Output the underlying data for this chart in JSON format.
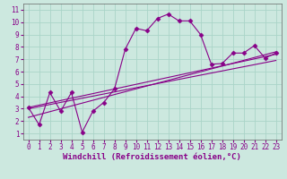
{
  "xlabel": "Windchill (Refroidissement éolien,°C)",
  "bg_color": "#cce8df",
  "plot_bg_color": "#cce8df",
  "line_color": "#880088",
  "grid_color": "#aad4c8",
  "xlim": [
    -0.5,
    23.5
  ],
  "ylim": [
    0.5,
    11.5
  ],
  "xticks": [
    0,
    1,
    2,
    3,
    4,
    5,
    6,
    7,
    8,
    9,
    10,
    11,
    12,
    13,
    14,
    15,
    16,
    17,
    18,
    19,
    20,
    21,
    22,
    23
  ],
  "yticks": [
    1,
    2,
    3,
    4,
    5,
    6,
    7,
    8,
    9,
    10,
    11
  ],
  "line1_x": [
    0,
    1,
    2,
    3,
    4,
    5,
    6,
    7,
    8,
    9,
    10,
    11,
    12,
    13,
    14,
    15,
    16,
    17,
    18,
    19,
    20,
    21,
    22,
    23
  ],
  "line1_y": [
    3.1,
    1.7,
    4.3,
    2.8,
    4.3,
    1.1,
    2.8,
    3.5,
    4.6,
    7.8,
    9.5,
    9.3,
    10.3,
    10.65,
    10.1,
    10.1,
    9.0,
    6.6,
    6.65,
    7.5,
    7.5,
    8.1,
    7.1,
    7.5
  ],
  "line2_x": [
    0,
    23
  ],
  "line2_y": [
    3.1,
    7.4
  ],
  "line3_x": [
    0,
    23
  ],
  "line3_y": [
    2.3,
    7.6
  ],
  "line4_x": [
    0,
    23
  ],
  "line4_y": [
    3.0,
    6.9
  ],
  "tick_fontsize": 5.5,
  "label_fontsize": 6.5
}
